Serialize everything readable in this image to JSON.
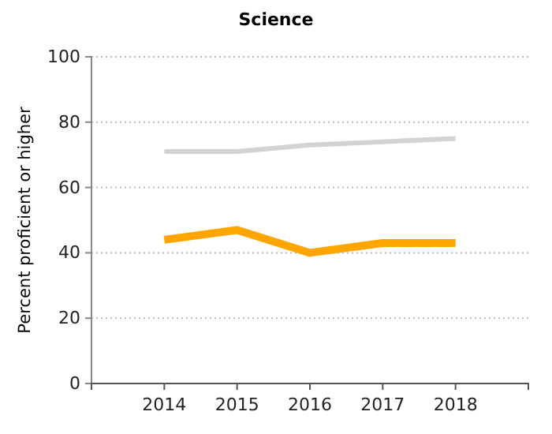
{
  "chart_data": {
    "type": "line",
    "title": "Science",
    "ylabel": "Percent proficient or higher",
    "x": [
      2014,
      2015,
      2016,
      2017,
      2018
    ],
    "xlim": [
      2013,
      2019
    ],
    "xticks": [
      {
        "value": 2013,
        "label": null
      },
      2014,
      2015,
      2016,
      2017,
      2018,
      {
        "value": 2019,
        "label": null
      }
    ],
    "ylim": [
      0,
      100
    ],
    "yticks": [
      0,
      20,
      40,
      60,
      80,
      100
    ],
    "grid": "y",
    "marker": "none",
    "line_style": "solid",
    "series": [
      {
        "color": "#d3d3d3",
        "values": [
          71,
          71,
          73,
          74,
          75
        ]
      },
      {
        "color": "#ffa500",
        "values": [
          44,
          47,
          40,
          43,
          43
        ]
      }
    ]
  }
}
